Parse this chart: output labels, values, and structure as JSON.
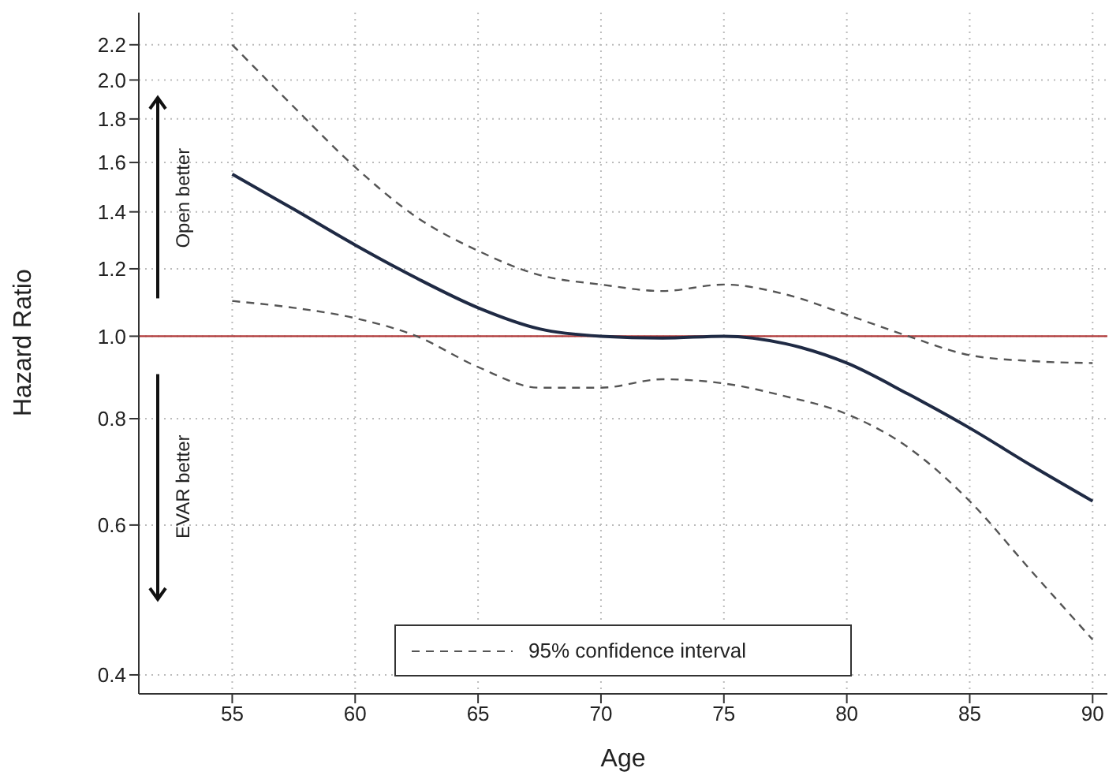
{
  "chart_data": {
    "type": "line",
    "xlabel": "Age",
    "ylabel": "Hazard Ratio",
    "x": [
      55,
      57.5,
      60,
      62.5,
      65,
      67.5,
      70,
      72.5,
      75,
      77.5,
      80,
      82.5,
      85,
      87.5,
      90
    ],
    "series": [
      {
        "color": "#1f2a44",
        "line_style": "solid",
        "values": [
          1.55,
          1.41,
          1.28,
          1.17,
          1.08,
          1.02,
          1.0,
          0.995,
          1.0,
          0.98,
          0.93,
          0.855,
          0.78,
          0.705,
          0.64
        ]
      },
      {
        "name": "95% confidence interval",
        "color": "#555555",
        "line_style": "dashed",
        "values": [
          2.2,
          1.86,
          1.58,
          1.38,
          1.26,
          1.18,
          1.15,
          1.13,
          1.15,
          1.12,
          1.06,
          1.0,
          0.95,
          0.935,
          0.93
        ]
      },
      {
        "color": "#555555",
        "line_style": "dashed",
        "values": [
          1.1,
          1.08,
          1.05,
          1.0,
          0.92,
          0.87,
          0.87,
          0.89,
          0.88,
          0.85,
          0.81,
          0.74,
          0.64,
          0.53,
          0.44
        ]
      }
    ],
    "xlim": [
      51.2,
      90.6
    ],
    "xticks": [
      55,
      60,
      65,
      70,
      75,
      80,
      85,
      90
    ],
    "ylim": [
      0.38,
      2.4
    ],
    "yticks": [
      0.4,
      0.6,
      0.8,
      {
        "value": 1,
        "label": "1.0"
      },
      1.2,
      1.4,
      1.6,
      1.8,
      {
        "value": 2,
        "label": "2.0"
      },
      2.2
    ],
    "log": "y",
    "grid": true,
    "legend": "bottom",
    "marker": "none",
    "ref_lines": [
      {
        "axis": "y",
        "value": 1.0,
        "color": "#b03a3a"
      }
    ],
    "annotations": [
      "Open better",
      "EVAR better"
    ]
  }
}
